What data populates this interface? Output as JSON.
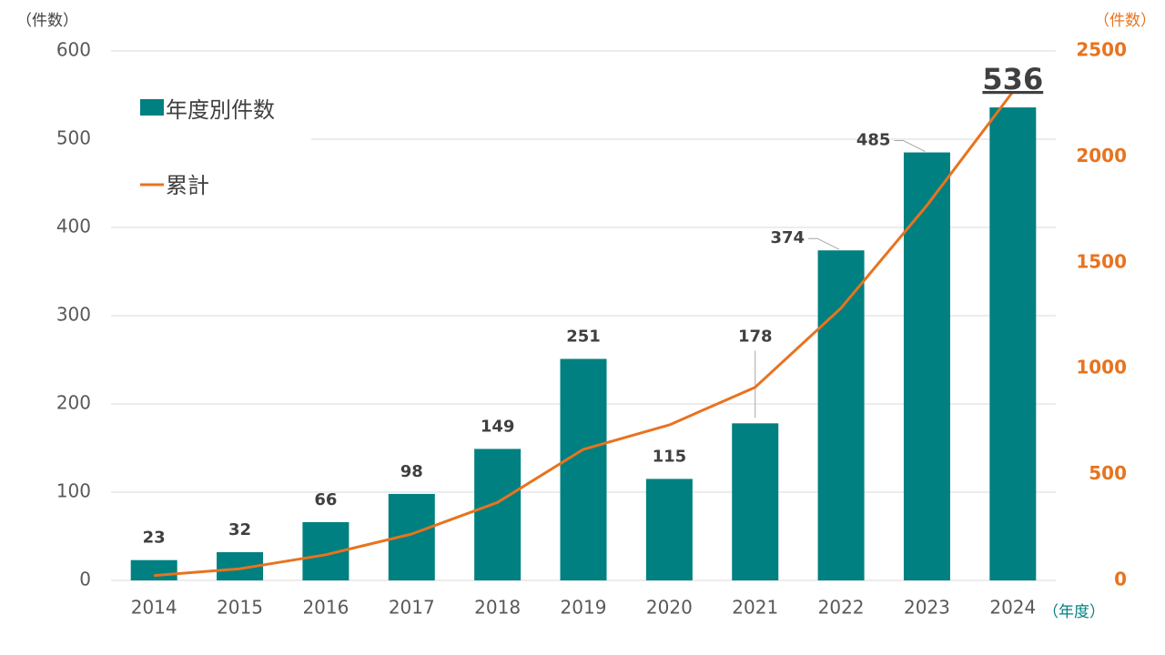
{
  "chart_data": {
    "type": "bar",
    "categories": [
      "2014",
      "2015",
      "2016",
      "2017",
      "2018",
      "2019",
      "2020",
      "2021",
      "2022",
      "2023",
      "2024"
    ],
    "series": [
      {
        "name": "年度別件数",
        "type": "bar",
        "axis": "left",
        "color": "#008080",
        "values": [
          23,
          32,
          66,
          98,
          149,
          251,
          115,
          178,
          374,
          485,
          536
        ]
      },
      {
        "name": "累計",
        "type": "line",
        "axis": "right",
        "color": "#e8731f",
        "values": [
          23,
          55,
          121,
          219,
          368,
          619,
          734,
          912,
          1286,
          1771,
          2307
        ]
      }
    ],
    "data_labels": [
      "23",
      "32",
      "66",
      "98",
      "149",
      "251",
      "115",
      "178",
      "374",
      "485",
      "536"
    ],
    "y_left": {
      "unit": "（件数）",
      "ticks": [
        "0",
        "100",
        "200",
        "300",
        "400",
        "500",
        "600"
      ],
      "range": [
        0,
        600
      ]
    },
    "y_right": {
      "unit": "（件数）",
      "ticks": [
        "0",
        "500",
        "1000",
        "1500",
        "2000",
        "2500"
      ],
      "range": [
        0,
        2500
      ]
    },
    "x_unit": "（年度）",
    "grid": true,
    "legend_placement": "top-left"
  }
}
